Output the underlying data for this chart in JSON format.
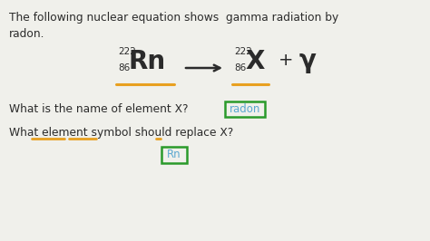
{
  "bg_color": "#f0f0eb",
  "text_color_dark": "#2b2b2b",
  "text_color_blue": "#5ba8d0",
  "text_color_orange": "#e8a020",
  "text_color_green": "#2a9a2a",
  "line1": "The following nuclear equation shows  gamma radiation by",
  "line2": "radon.",
  "question1": "What is the name of element X?",
  "answer1": "radon",
  "question2": "What element symbol should replace X?",
  "answer2": "Rn",
  "figsize": [
    4.74,
    2.66
  ],
  "dpi": 100
}
